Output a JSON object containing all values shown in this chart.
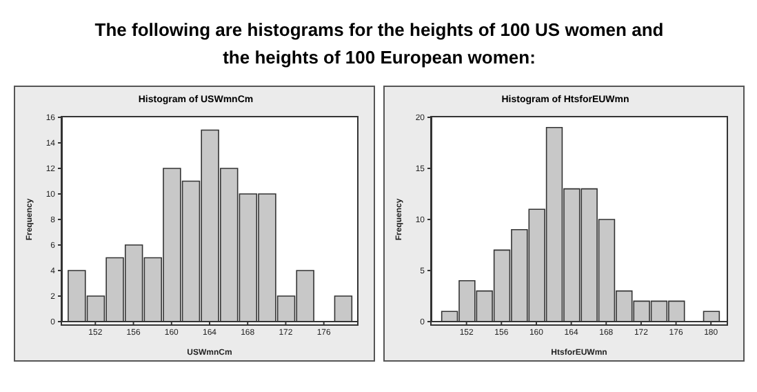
{
  "chart_data": [
    {
      "type": "histogram",
      "title": "Histogram of USWmnCm",
      "xlabel": "USWmnCm",
      "ylabel": "Frequency",
      "annotations": [
        "The following are histograms for the heights of 100 US women and the heights of 100 European women:"
      ],
      "color": "#c8c8c8",
      "bins": [
        149,
        151,
        153,
        155,
        157,
        159,
        161,
        163,
        165,
        167,
        169,
        171,
        173,
        175,
        177,
        179
      ],
      "values": [
        4,
        2,
        5,
        6,
        5,
        12,
        11,
        15,
        12,
        10,
        10,
        2,
        4,
        0,
        2
      ],
      "xlim": [
        148.5,
        179.5
      ],
      "xticks": [
        152,
        156,
        160,
        164,
        168,
        172,
        176
      ],
      "ylim": [
        0,
        16
      ],
      "yticks": [
        0,
        2,
        4,
        6,
        8,
        10,
        12,
        14,
        16
      ],
      "grid": false,
      "legend": false
    },
    {
      "type": "histogram",
      "title": "Histogram of HtsforEUWmn",
      "xlabel": "HtsforEUWmn",
      "ylabel": "Frequency",
      "color": "#c8c8c8",
      "bins": [
        149,
        151,
        153,
        155,
        157,
        159,
        161,
        163,
        165,
        167,
        169,
        171,
        173,
        175,
        177,
        179,
        181
      ],
      "values": [
        1,
        4,
        3,
        7,
        9,
        11,
        19,
        13,
        13,
        10,
        3,
        2,
        2,
        2,
        0,
        1
      ],
      "xlim": [
        148,
        181.8
      ],
      "xticks": [
        152,
        156,
        160,
        164,
        168,
        172,
        176,
        180
      ],
      "ylim": [
        0,
        20
      ],
      "yticks": [
        0,
        5,
        10,
        15,
        20
      ],
      "grid": false,
      "legend": false
    }
  ]
}
